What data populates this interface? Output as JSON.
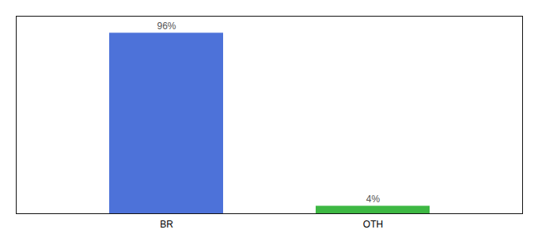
{
  "chart_data": {
    "type": "bar",
    "categories": [
      "BR",
      "OTH"
    ],
    "values": [
      96,
      4
    ],
    "value_labels": [
      "96%",
      "4%"
    ],
    "colors": [
      "#4d72d9",
      "#3db843"
    ],
    "ylim": [
      0,
      105
    ],
    "yticks": [],
    "data_labels": true,
    "tick_labels": "x"
  }
}
